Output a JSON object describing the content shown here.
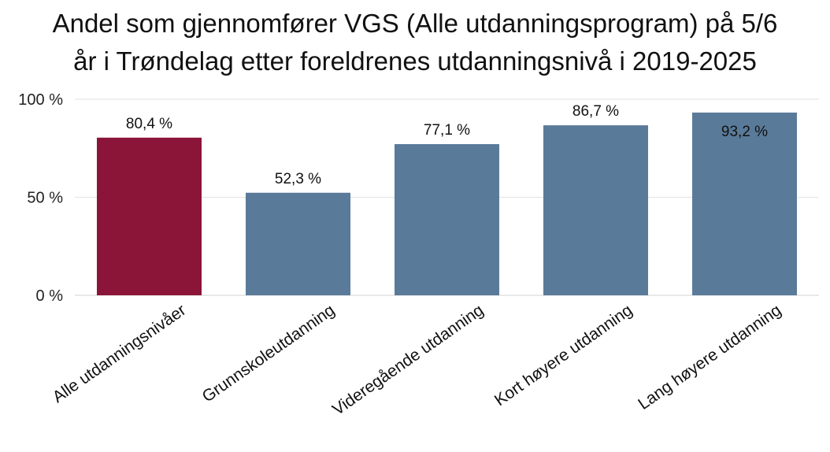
{
  "title": {
    "line1": "Andel som gjennomfører VGS (Alle utdanningsprogram) på 5/6",
    "line2": "år i Trøndelag etter foreldrenes utdanningsnivå i 2019-2025"
  },
  "chart_data": {
    "type": "bar",
    "categories": [
      "Alle utdanningsnivåer",
      "Grunnskoleutdanning",
      "Videregående utdanning",
      "Kort høyere utdanning",
      "Lang høyere utdanning"
    ],
    "values": [
      80.4,
      52.3,
      77.1,
      86.7,
      93.2
    ],
    "data_labels": [
      "80,4 %",
      "52,3 %",
      "77,1 %",
      "86,7 %",
      "93,2 %"
    ],
    "colors": [
      "#8b1538",
      "#5a7a99",
      "#5a7a99",
      "#5a7a99",
      "#5a7a99"
    ],
    "ylim": [
      0,
      100
    ],
    "yticks": [
      0,
      50,
      100
    ],
    "ytick_labels": [
      "0 %",
      "50 %",
      "100 %"
    ],
    "grid": true,
    "xlabel": "",
    "ylabel": ""
  }
}
